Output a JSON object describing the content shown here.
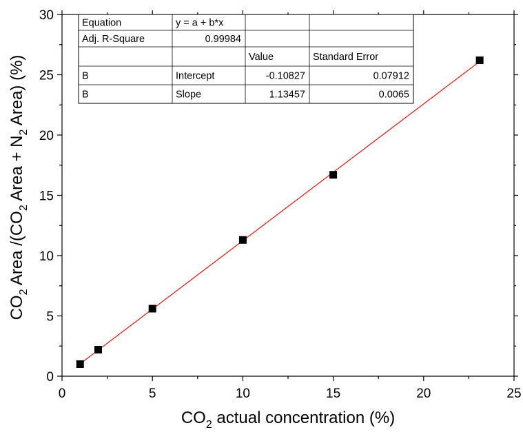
{
  "chart_data": {
    "type": "scatter",
    "xlim": [
      0,
      25
    ],
    "ylim": [
      0,
      30
    ],
    "x_ticks": [
      0,
      5,
      10,
      15,
      20,
      25
    ],
    "y_ticks": [
      0,
      5,
      10,
      15,
      20,
      25,
      30
    ],
    "grid": false,
    "xlabel": {
      "main": "CO",
      "sub": "2",
      "rest": " actual concentration (%)"
    },
    "ylabel": {
      "p1": "CO",
      "s1": "2",
      "p2": " Area /(CO",
      "s2": "2",
      "p3": " Area + N",
      "s3": "2",
      "p4": " Area)  (%)"
    },
    "series": [
      {
        "marker": "square",
        "color": "#000000",
        "x": [
          1,
          2,
          5,
          10,
          15,
          23.1
        ],
        "y": [
          1.0,
          2.2,
          5.6,
          11.3,
          16.7,
          26.2
        ]
      }
    ],
    "fit_line": {
      "color": "#e8201a",
      "intercept": -0.10827,
      "slope": 1.13457,
      "x_range": [
        1,
        23.1
      ]
    },
    "fit_table": {
      "rows": [
        [
          "Equation",
          "y = a + b*x",
          "",
          ""
        ],
        [
          "Adj. R-Square",
          "0.99984",
          "",
          ""
        ],
        [
          "",
          "",
          "Value",
          "Standard Error"
        ],
        [
          "B",
          "Intercept",
          "-0.10827",
          "0.07912"
        ],
        [
          "B",
          "Slope",
          "1.13457",
          "0.0065"
        ]
      ]
    }
  }
}
